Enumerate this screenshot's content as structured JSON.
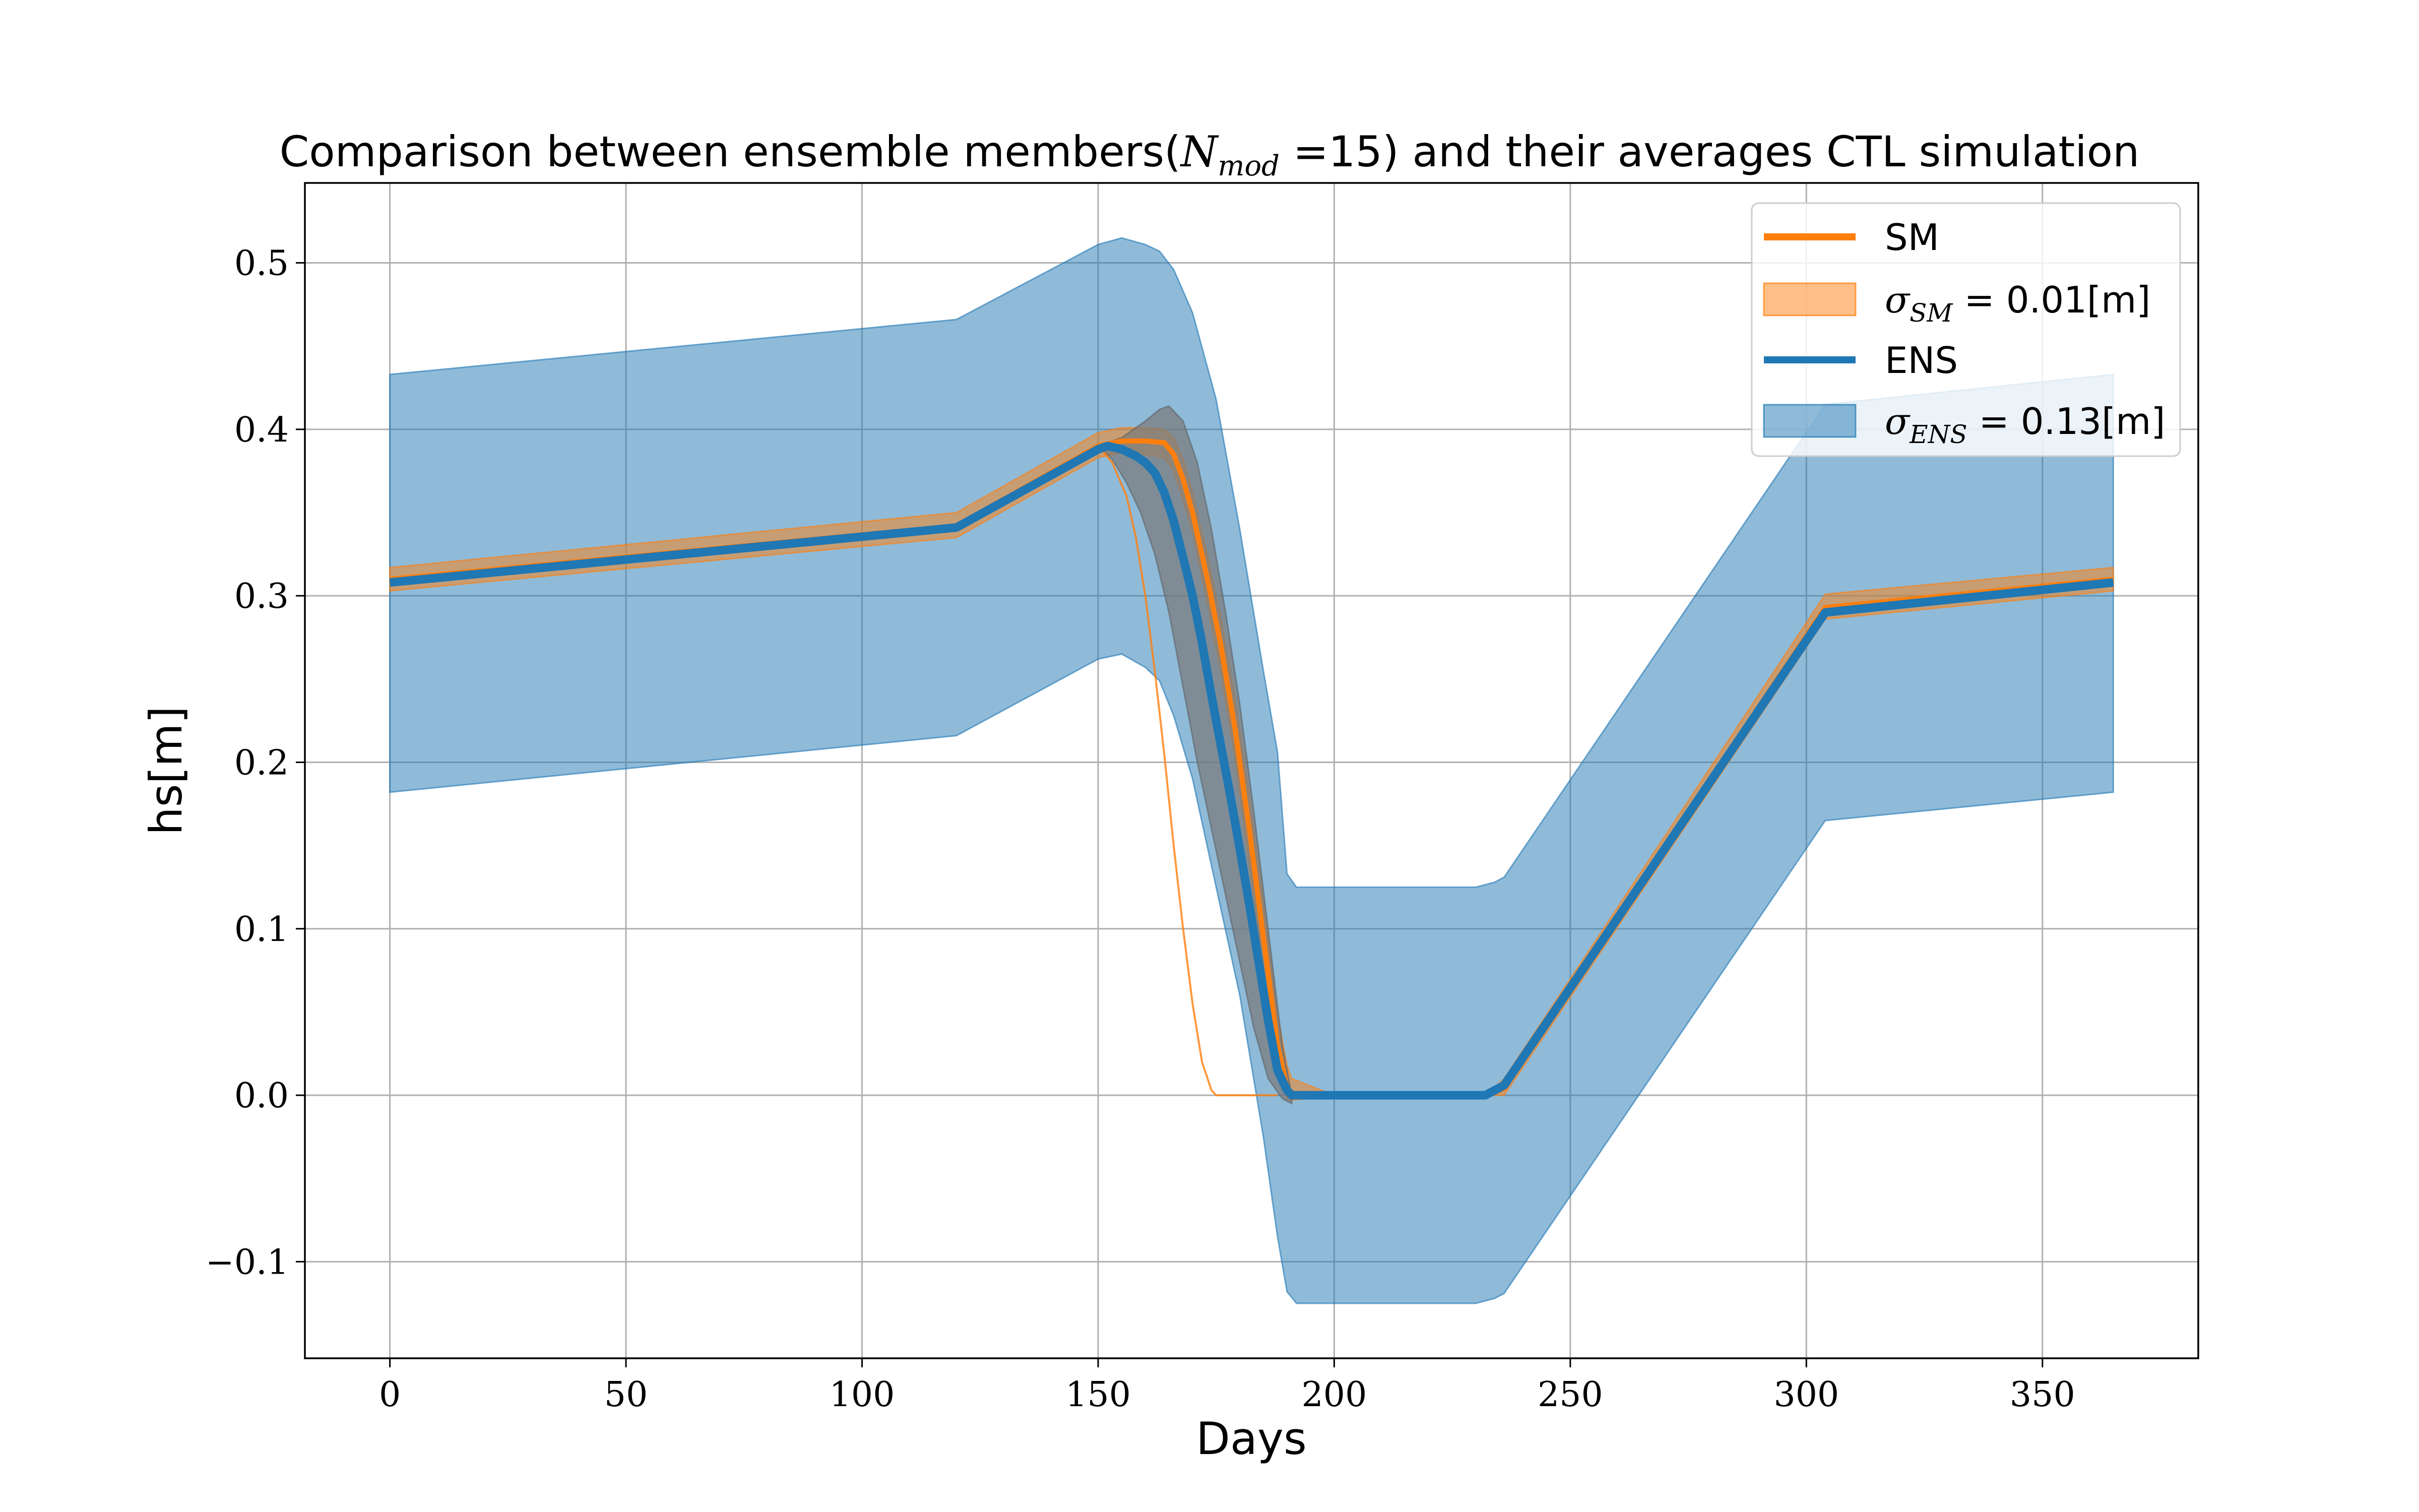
{
  "chart_data": {
    "type": "line",
    "title": "Comparison between ensemble members(N_mod =15) and their averages CTL simulation",
    "title_parts": {
      "before": "Comparison between ensemble members(",
      "symbol": "N",
      "subscript": "mod",
      "after": " =15) and their averages CTL simulation"
    },
    "xlabel": "Days",
    "ylabel": "hs[m]",
    "xlim": [
      -18,
      383
    ],
    "ylim": [
      -0.158,
      0.548
    ],
    "xticks": [
      0,
      50,
      100,
      150,
      200,
      250,
      300,
      350
    ],
    "xtick_labels": [
      "0",
      "50",
      "100",
      "150",
      "200",
      "250",
      "300",
      "350"
    ],
    "yticks": [
      -0.1,
      0.0,
      0.1,
      0.2,
      0.3,
      0.4,
      0.5
    ],
    "ytick_labels": [
      "−0.1",
      "0.0",
      "0.1",
      "0.2",
      "0.3",
      "0.4",
      "0.5"
    ],
    "grid": true,
    "legend_position": "upper-right",
    "colors": {
      "sm": "#ff7f0e",
      "ens": "#1f77b4",
      "member_band": "#7a7a7a"
    },
    "legend": [
      {
        "kind": "line",
        "series": "sm",
        "label": "SM"
      },
      {
        "kind": "band",
        "series": "sm",
        "symbol": "σ",
        "subscript": "SM",
        "value": " = 0.01[m]"
      },
      {
        "kind": "line",
        "series": "ens",
        "label": "ENS"
      },
      {
        "kind": "band",
        "series": "ens",
        "symbol": "σ",
        "subscript": "ENS",
        "value": " = 0.13[m]"
      }
    ],
    "series": [
      {
        "name": "ENS",
        "key": "ens_band_upper",
        "x": [
          0,
          120,
          150,
          155,
          160,
          163,
          166,
          170,
          175,
          180,
          185,
          188,
          190,
          192,
          200,
          230,
          234,
          236,
          304,
          365
        ],
        "y": [
          0.433,
          0.466,
          0.511,
          0.515,
          0.511,
          0.507,
          0.496,
          0.47,
          0.418,
          0.34,
          0.255,
          0.206,
          0.133,
          0.125,
          0.125,
          0.125,
          0.128,
          0.131,
          0.415,
          0.433
        ]
      },
      {
        "name": "ENS",
        "key": "ens_band_lower",
        "x": [
          0,
          120,
          150,
          155,
          160,
          163,
          166,
          170,
          175,
          180,
          185,
          188,
          190,
          192,
          200,
          230,
          234,
          236,
          304,
          365
        ],
        "y": [
          0.182,
          0.216,
          0.262,
          0.265,
          0.257,
          0.249,
          0.228,
          0.19,
          0.125,
          0.06,
          -0.025,
          -0.085,
          -0.118,
          -0.125,
          -0.125,
          -0.125,
          -0.122,
          -0.119,
          0.165,
          0.182
        ]
      },
      {
        "name": "ENS",
        "key": "ens_mean",
        "x": [
          0,
          120,
          150,
          152,
          155,
          158,
          160,
          162,
          164,
          166,
          168,
          170,
          172,
          174,
          176,
          178,
          180,
          182,
          184,
          186,
          188,
          190,
          191,
          192,
          200,
          232,
          234,
          236,
          304,
          365
        ],
        "y": [
          0.308,
          0.341,
          0.388,
          0.39,
          0.388,
          0.384,
          0.38,
          0.374,
          0.362,
          0.345,
          0.323,
          0.3,
          0.272,
          0.24,
          0.21,
          0.18,
          0.148,
          0.115,
          0.08,
          0.045,
          0.015,
          0.003,
          0.0,
          0.0,
          0.0,
          0.0,
          0.003,
          0.006,
          0.29,
          0.308
        ]
      },
      {
        "name": "SM",
        "key": "sm_mean",
        "x": [
          0,
          120,
          150,
          155,
          160,
          164,
          166,
          168,
          170,
          173,
          176,
          179,
          182,
          185,
          188,
          190,
          191,
          200,
          232,
          236,
          304,
          365
        ],
        "y": [
          0.31,
          0.342,
          0.39,
          0.393,
          0.393,
          0.392,
          0.385,
          0.37,
          0.35,
          0.312,
          0.27,
          0.22,
          0.16,
          0.095,
          0.03,
          0.005,
          0.0,
          0.0,
          0.0,
          0.004,
          0.293,
          0.31
        ]
      },
      {
        "name": "SM",
        "key": "sm_band_upper",
        "x": [
          0,
          120,
          150,
          155,
          160,
          164,
          166,
          168,
          170,
          173,
          176,
          179,
          182,
          185,
          188,
          190,
          191,
          200,
          232,
          236,
          304,
          365
        ],
        "y": [
          0.317,
          0.35,
          0.398,
          0.401,
          0.401,
          0.4,
          0.395,
          0.382,
          0.362,
          0.326,
          0.286,
          0.238,
          0.18,
          0.115,
          0.048,
          0.018,
          0.01,
          0.0,
          0.0,
          0.01,
          0.301,
          0.317
        ]
      },
      {
        "name": "SM",
        "key": "sm_band_lower",
        "x": [
          0,
          120,
          150,
          155,
          160,
          164,
          166,
          168,
          170,
          173,
          176,
          179,
          182,
          185,
          188,
          190,
          191,
          200,
          232,
          236,
          304,
          365
        ],
        "y": [
          0.303,
          0.335,
          0.383,
          0.386,
          0.385,
          0.383,
          0.375,
          0.358,
          0.338,
          0.298,
          0.254,
          0.202,
          0.14,
          0.075,
          0.012,
          -0.002,
          -0.003,
          0.0,
          0.0,
          0.0,
          0.286,
          0.303
        ]
      },
      {
        "name": "SM",
        "key": "member_band_upper",
        "x": [
          150,
          155,
          160,
          163,
          165,
          168,
          171,
          174,
          177,
          180,
          183,
          186,
          189,
          191
        ],
        "y": [
          0.39,
          0.395,
          0.405,
          0.412,
          0.414,
          0.405,
          0.38,
          0.34,
          0.29,
          0.235,
          0.17,
          0.1,
          0.03,
          0.0
        ]
      },
      {
        "name": "SM",
        "key": "member_band_lower",
        "x": [
          150,
          153,
          156,
          159,
          162,
          165,
          168,
          171,
          174,
          177,
          180,
          183,
          186,
          189,
          191
        ],
        "y": [
          0.39,
          0.382,
          0.368,
          0.35,
          0.325,
          0.29,
          0.245,
          0.2,
          0.16,
          0.12,
          0.08,
          0.04,
          0.01,
          -0.002,
          -0.005
        ]
      },
      {
        "name": "SM",
        "key": "sm_member_low",
        "x": [
          150,
          153,
          156,
          158,
          160,
          162,
          164,
          166,
          168,
          170,
          172,
          174,
          175,
          180,
          188
        ],
        "y": [
          0.39,
          0.38,
          0.36,
          0.335,
          0.3,
          0.255,
          0.205,
          0.15,
          0.1,
          0.055,
          0.02,
          0.003,
          0.0,
          0.0,
          0.0
        ]
      }
    ]
  }
}
